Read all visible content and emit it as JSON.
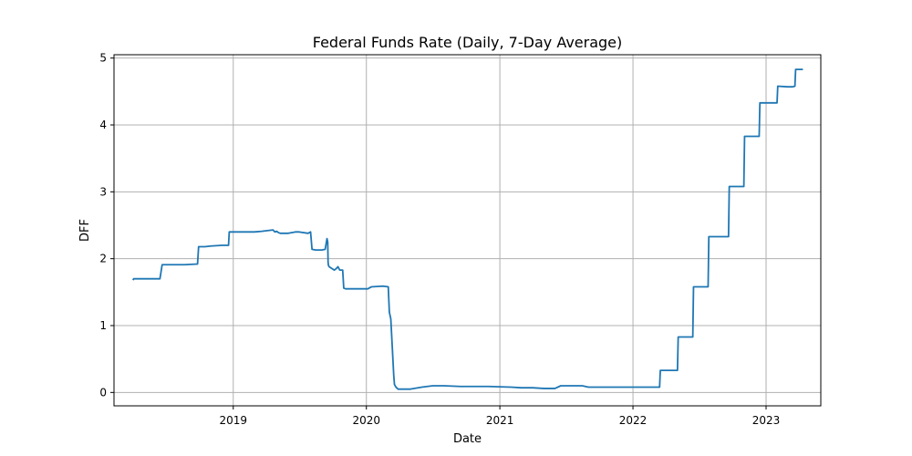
{
  "chart_data": {
    "type": "line",
    "title": "Federal Funds Rate (Daily, 7-Day Average)",
    "xlabel": "Date",
    "ylabel": "DFF",
    "xlim": [
      "2018-02-08",
      "2023-05-31"
    ],
    "ylim": [
      -0.2,
      5.05
    ],
    "x_ticks": [
      {
        "date": "2019-01-01",
        "label": "2019"
      },
      {
        "date": "2020-01-01",
        "label": "2020"
      },
      {
        "date": "2021-01-01",
        "label": "2021"
      },
      {
        "date": "2022-01-01",
        "label": "2022"
      },
      {
        "date": "2023-01-01",
        "label": "2023"
      }
    ],
    "y_ticks": [
      0,
      1,
      2,
      3,
      4,
      5
    ],
    "grid": true,
    "color": "#1f77b4",
    "series": [
      {
        "x": [
          "2018-04-01",
          "2018-04-03",
          "2018-04-08",
          "2018-06-14",
          "2018-06-18",
          "2018-06-20",
          "2018-07-20",
          "2018-08-20",
          "2018-09-25",
          "2018-09-28",
          "2018-10-15",
          "2018-11-01",
          "2018-12-01",
          "2018-12-19",
          "2018-12-21",
          "2019-01-30",
          "2019-02-28",
          "2019-03-20",
          "2019-04-20",
          "2019-04-25",
          "2019-04-30",
          "2019-05-05",
          "2019-05-10",
          "2019-06-01",
          "2019-06-20",
          "2019-07-01",
          "2019-07-25",
          "2019-08-01",
          "2019-08-05",
          "2019-08-15",
          "2019-09-01",
          "2019-09-10",
          "2019-09-15",
          "2019-09-17",
          "2019-09-18",
          "2019-09-19",
          "2019-09-21",
          "2019-10-05",
          "2019-10-10",
          "2019-10-15",
          "2019-10-20",
          "2019-10-28",
          "2019-10-31",
          "2019-11-05",
          "2019-12-31",
          "2020-01-05",
          "2020-01-15",
          "2020-02-15",
          "2020-03-01",
          "2020-03-04",
          "2020-03-08",
          "2020-03-16",
          "2020-03-18",
          "2020-03-22",
          "2020-03-28",
          "2020-04-05",
          "2020-05-01",
          "2020-06-01",
          "2020-07-01",
          "2020-08-01",
          "2020-09-15",
          "2020-12-01",
          "2021-02-01",
          "2021-03-01",
          "2021-04-01",
          "2021-05-01",
          "2021-06-01",
          "2021-06-17",
          "2021-07-15",
          "2021-08-15",
          "2021-09-01",
          "2021-10-01",
          "2021-12-01",
          "2022-03-15",
          "2022-03-17",
          "2022-05-03",
          "2022-05-05",
          "2022-06-14",
          "2022-06-16",
          "2022-07-26",
          "2022-07-28",
          "2022-09-20",
          "2022-09-22",
          "2022-11-01",
          "2022-11-03",
          "2022-12-13",
          "2022-12-15",
          "2023-01-31",
          "2023-02-02",
          "2023-03-01",
          "2023-03-15",
          "2023-03-21",
          "2023-03-23",
          "2023-04-12"
        ],
        "y": [
          1.68,
          1.7,
          1.7,
          1.7,
          1.84,
          1.91,
          1.91,
          1.91,
          1.92,
          2.18,
          2.18,
          2.19,
          2.2,
          2.2,
          2.4,
          2.4,
          2.4,
          2.41,
          2.43,
          2.4,
          2.41,
          2.39,
          2.38,
          2.38,
          2.4,
          2.4,
          2.38,
          2.4,
          2.14,
          2.13,
          2.13,
          2.14,
          2.3,
          2.25,
          1.95,
          1.9,
          1.88,
          1.83,
          1.85,
          1.88,
          1.83,
          1.83,
          1.56,
          1.55,
          1.55,
          1.55,
          1.58,
          1.59,
          1.58,
          1.2,
          1.1,
          0.26,
          0.12,
          0.08,
          0.05,
          0.05,
          0.05,
          0.08,
          0.1,
          0.1,
          0.09,
          0.09,
          0.08,
          0.07,
          0.07,
          0.06,
          0.06,
          0.1,
          0.1,
          0.1,
          0.08,
          0.08,
          0.08,
          0.08,
          0.33,
          0.33,
          0.83,
          0.83,
          1.58,
          1.58,
          2.33,
          2.33,
          3.08,
          3.08,
          3.83,
          3.83,
          4.33,
          4.33,
          4.58,
          4.57,
          4.57,
          4.58,
          4.83,
          4.83
        ]
      }
    ]
  }
}
